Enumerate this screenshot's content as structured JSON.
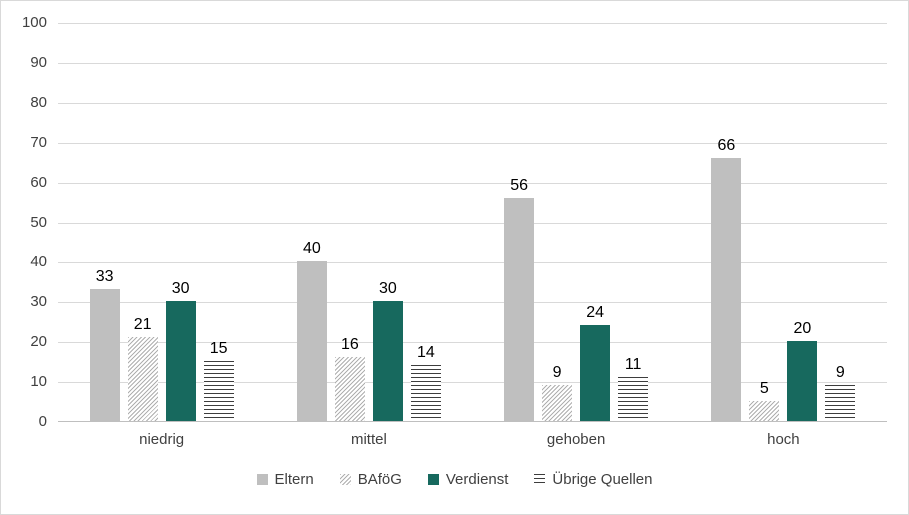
{
  "chart_data": {
    "type": "bar",
    "title": "",
    "categories": [
      "niedrig",
      "mittel",
      "gehoben",
      "hoch"
    ],
    "series": [
      {
        "name": "Eltern",
        "slug": "eltern",
        "style": "solid-gray",
        "values": [
          33,
          40,
          56,
          66
        ]
      },
      {
        "name": "BAföG",
        "slug": "bafoeg",
        "style": "dots",
        "values": [
          21,
          16,
          9,
          5
        ]
      },
      {
        "name": "Verdienst",
        "slug": "verdienst",
        "style": "solid-teal",
        "values": [
          30,
          30,
          24,
          20
        ]
      },
      {
        "name": "Übrige Quellen",
        "slug": "uebrige-quellen",
        "style": "hlines",
        "values": [
          15,
          14,
          11,
          9
        ]
      }
    ],
    "xlabel": "",
    "ylabel": "",
    "ylim": [
      0,
      100
    ],
    "y_ticks": [
      0,
      10,
      20,
      30,
      40,
      50,
      60,
      70,
      80,
      90,
      100
    ],
    "grid": true,
    "legend_position": "bottom",
    "data_labels": true
  },
  "colors": {
    "bar_gray": "#BFBFBF",
    "bar_teal": "#17695E",
    "pattern_dot": "#AFAFAF",
    "pattern_stripe": "#3D3D3D",
    "gridline": "#D9D9D9",
    "axis_line": "#BFBFBF",
    "tick_text": "#404040",
    "value_text": "#000000",
    "background": "#FFFFFF",
    "border": "#D9D9D9"
  }
}
